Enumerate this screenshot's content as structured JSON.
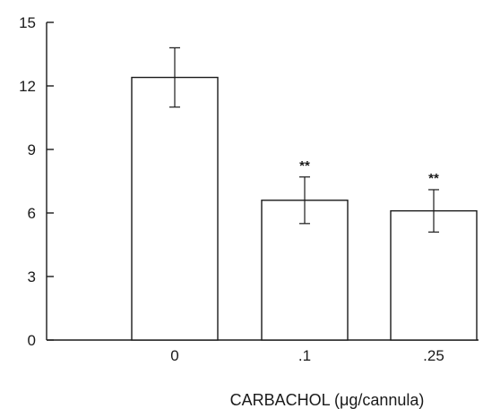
{
  "chart_data": {
    "type": "bar",
    "categories": [
      "0",
      ".1",
      ".25"
    ],
    "values": [
      12.4,
      6.6,
      6.1
    ],
    "error": [
      1.4,
      1.1,
      1.0
    ],
    "significance": [
      "",
      "**",
      "**"
    ],
    "xlabel": "CARBACHOL (μg/cannula)",
    "ylabel": "",
    "ylim": [
      0,
      15
    ],
    "yticks": [
      0,
      3,
      6,
      9,
      12,
      15
    ],
    "ytick_labels": [
      "0",
      "3",
      "6",
      "9",
      "12",
      "15"
    ],
    "grid": false,
    "legend": "none",
    "colors": {
      "bar_fill": "#ffffff",
      "stroke": "#1a1a1a"
    }
  }
}
